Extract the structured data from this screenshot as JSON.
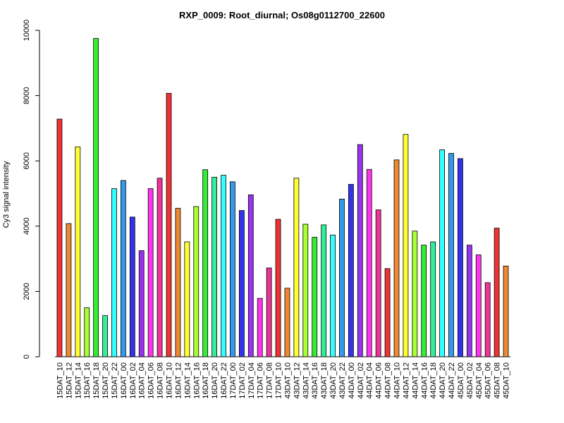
{
  "chart_data": {
    "type": "bar",
    "title": "RXP_0009: Root_diurnal; Os08g0112700_22600",
    "xlabel": "",
    "ylabel": "Cy3 signal intensity",
    "ylim": [
      0,
      10000
    ],
    "yticks": [
      "0",
      "2000",
      "4000",
      "6000",
      "8000",
      "10000"
    ],
    "grid": false,
    "legend": "none",
    "categories": [
      "15DAT_10",
      "15DAT_12",
      "15DAT_14",
      "15DAT_16",
      "15DAT_18",
      "15DAT_20",
      "15DAT_22",
      "16DAT_00",
      "16DAT_02",
      "16DAT_04",
      "16DAT_06",
      "16DAT_08",
      "16DAT_10",
      "16DAT_12",
      "16DAT_14",
      "16DAT_16",
      "16DAT_18",
      "16DAT_20",
      "16DAT_22",
      "17DAT_00",
      "17DAT_02",
      "17DAT_04",
      "17DAT_06",
      "17DAT_08",
      "17DAT_10",
      "43DAT_10",
      "43DAT_12",
      "43DAT_14",
      "43DAT_16",
      "43DAT_18",
      "43DAT_20",
      "43DAT_22",
      "44DAT_00",
      "44DAT_02",
      "44DAT_04",
      "44DAT_06",
      "44DAT_08",
      "44DAT_10",
      "44DAT_12",
      "44DAT_14",
      "44DAT_16",
      "44DAT_18",
      "44DAT_20",
      "44DAT_22",
      "45DAT_00",
      "45DAT_02",
      "45DAT_04",
      "45DAT_06",
      "45DAT_08",
      "45DAT_10"
    ],
    "values": [
      7280,
      4080,
      6430,
      1500,
      9750,
      1260,
      5150,
      5400,
      4280,
      3250,
      5150,
      5470,
      8070,
      4550,
      3520,
      4600,
      5730,
      5500,
      5560,
      5360,
      4480,
      4960,
      1790,
      2720,
      4210,
      2100,
      5470,
      4060,
      3660,
      4040,
      3730,
      4830,
      5280,
      6500,
      5740,
      4500,
      2700,
      6030,
      6810,
      3850,
      3420,
      3520,
      6340,
      6230,
      6070,
      3420,
      3120,
      2270,
      3940,
      2780
    ],
    "colors": [
      "#ee3333",
      "#ee8833",
      "#ffff33",
      "#aaff33",
      "#33ee33",
      "#33ee99",
      "#33ffff",
      "#3399ee",
      "#3333ee",
      "#9933ee",
      "#ff33ee",
      "#ee3399"
    ]
  }
}
